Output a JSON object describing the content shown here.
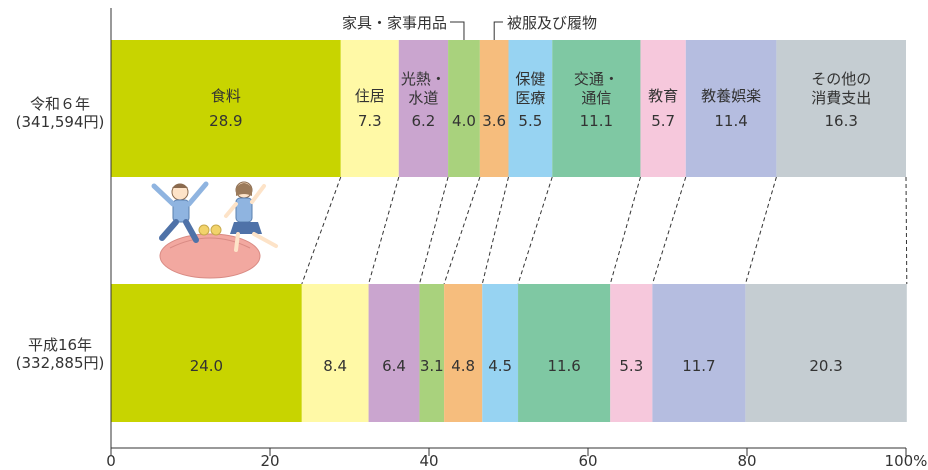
{
  "chart_data": {
    "type": "bar",
    "orientation": "horizontal",
    "stacked": true,
    "categories": [
      "食料",
      "住居",
      "光熱・水道",
      "家具・家事用品",
      "被服及び履物",
      "保健医療",
      "交通・通信",
      "教育",
      "教養娯楽",
      "その他の消費支出"
    ],
    "category_display": [
      "食料",
      "住居",
      "光熱・\n水道",
      "家具・家事用品",
      "被服及び履物",
      "保健\n医療",
      "交通・\n通信",
      "教育",
      "教養娯楽",
      "その他の\n消費支出"
    ],
    "colors": [
      "#c8d400",
      "#fff9a6",
      "#caa5cf",
      "#a9d27d",
      "#f6bd7d",
      "#97d3f2",
      "#7fc8a3",
      "#f6c8dc",
      "#b5bde0",
      "#c5cdd2"
    ],
    "series": [
      {
        "label_lines": [
          "令和６年",
          "(341,594円)"
        ],
        "values": [
          28.9,
          7.3,
          6.2,
          4.0,
          3.6,
          5.5,
          11.1,
          5.7,
          11.4,
          16.3
        ]
      },
      {
        "label_lines": [
          "平成16年",
          "(332,885円)"
        ],
        "values": [
          24.0,
          8.4,
          6.4,
          3.1,
          4.8,
          4.5,
          11.6,
          5.3,
          11.7,
          20.3
        ]
      }
    ],
    "xlim": [
      0,
      100
    ],
    "xticks": [
      "0",
      "20",
      "40",
      "60",
      "80",
      "100%"
    ],
    "xtick_values": [
      0,
      20,
      40,
      60,
      80,
      100
    ]
  }
}
